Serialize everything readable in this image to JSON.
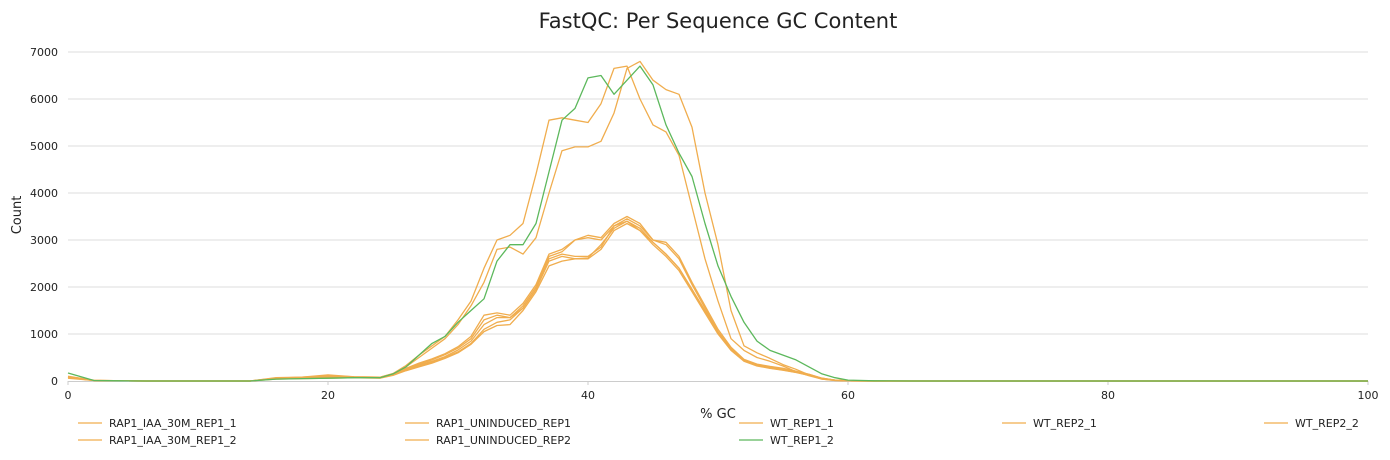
{
  "chart_data": {
    "type": "line",
    "title": "FastQC: Per Sequence GC Content",
    "xlabel": "% GC",
    "ylabel": "Count",
    "xlim": [
      0,
      100
    ],
    "ylim": [
      0,
      7000
    ],
    "xticks": [
      0,
      20,
      40,
      60,
      80,
      100
    ],
    "yticks": [
      0,
      1000,
      2000,
      3000,
      4000,
      5000,
      6000,
      7000
    ],
    "grid": true,
    "legend_position": "bottom",
    "series": [
      {
        "name": "RAP1_IAA_30M_REP1_1",
        "color": "#f0ad4e",
        "x": [
          0,
          2,
          4,
          6,
          8,
          10,
          12,
          14,
          16,
          18,
          20,
          22,
          24,
          25,
          26,
          27,
          28,
          29,
          30,
          31,
          32,
          33,
          34,
          35,
          36,
          37,
          38,
          39,
          40,
          41,
          42,
          43,
          44,
          45,
          46,
          47,
          48,
          49,
          50,
          51,
          52,
          53,
          54,
          55,
          56,
          57,
          58,
          59,
          60,
          62,
          65,
          70,
          100
        ],
        "y": [
          80,
          10,
          5,
          0,
          0,
          0,
          0,
          0,
          40,
          50,
          60,
          70,
          60,
          120,
          220,
          300,
          380,
          480,
          600,
          780,
          1050,
          1180,
          1200,
          1500,
          1900,
          2450,
          2550,
          2600,
          2600,
          2800,
          3200,
          3350,
          3200,
          2900,
          2650,
          2350,
          1900,
          1450,
          1000,
          650,
          420,
          320,
          270,
          230,
          180,
          120,
          50,
          20,
          5,
          0,
          0,
          0,
          0
        ]
      },
      {
        "name": "RAP1_IAA_30M_REP1_2",
        "color": "#f0ad4e",
        "x": [
          0,
          2,
          4,
          6,
          8,
          10,
          12,
          14,
          16,
          18,
          20,
          22,
          24,
          25,
          26,
          27,
          28,
          29,
          30,
          31,
          32,
          33,
          34,
          35,
          36,
          37,
          38,
          39,
          40,
          41,
          42,
          43,
          44,
          45,
          46,
          47,
          48,
          49,
          50,
          51,
          52,
          53,
          54,
          55,
          56,
          57,
          58,
          59,
          60,
          62,
          65,
          70,
          100
        ],
        "y": [
          60,
          10,
          5,
          0,
          0,
          0,
          0,
          0,
          50,
          60,
          70,
          80,
          70,
          130,
          230,
          320,
          400,
          500,
          620,
          800,
          1100,
          1250,
          1300,
          1550,
          1950,
          2550,
          2650,
          2600,
          2620,
          2900,
          3250,
          3400,
          3250,
          2950,
          2700,
          2400,
          1950,
          1500,
          1050,
          680,
          440,
          340,
          280,
          240,
          190,
          130,
          55,
          20,
          5,
          0,
          0,
          0,
          0
        ]
      },
      {
        "name": "RAP1_UNINDUCED_REP1",
        "color": "#f0ad4e",
        "x": [
          0,
          2,
          4,
          6,
          8,
          10,
          12,
          14,
          16,
          18,
          20,
          22,
          24,
          25,
          26,
          27,
          28,
          29,
          30,
          31,
          32,
          33,
          34,
          35,
          36,
          37,
          38,
          39,
          40,
          41,
          42,
          43,
          44,
          45,
          46,
          47,
          48,
          49,
          50,
          51,
          52,
          53,
          54,
          55,
          56,
          57,
          58,
          59,
          60,
          62,
          65,
          70,
          100
        ],
        "y": [
          100,
          15,
          5,
          0,
          0,
          0,
          0,
          0,
          70,
          80,
          110,
          90,
          80,
          150,
          300,
          500,
          700,
          900,
          1200,
          1600,
          2100,
          2800,
          2850,
          2700,
          3050,
          4000,
          4900,
          4980,
          4980,
          5100,
          5700,
          6650,
          6800,
          6400,
          6200,
          6100,
          5400,
          4000,
          2900,
          1500,
          750,
          600,
          480,
          350,
          250,
          130,
          40,
          10,
          5,
          0,
          0,
          0,
          0
        ]
      },
      {
        "name": "RAP1_UNINDUCED_REP2",
        "color": "#f0ad4e",
        "x": [
          0,
          2,
          4,
          6,
          8,
          10,
          12,
          14,
          16,
          18,
          20,
          22,
          24,
          25,
          26,
          27,
          28,
          29,
          30,
          31,
          32,
          33,
          34,
          35,
          36,
          37,
          38,
          39,
          40,
          41,
          42,
          43,
          44,
          45,
          46,
          47,
          48,
          49,
          50,
          51,
          52,
          53,
          54,
          55,
          56,
          57,
          58,
          59,
          60,
          62,
          65,
          70,
          100
        ],
        "y": [
          90,
          15,
          5,
          0,
          0,
          0,
          0,
          0,
          60,
          80,
          130,
          90,
          80,
          160,
          330,
          550,
          750,
          950,
          1300,
          1700,
          2400,
          3000,
          3100,
          3350,
          4400,
          5550,
          5600,
          5550,
          5500,
          5900,
          6650,
          6700,
          6000,
          5450,
          5300,
          4800,
          3700,
          2600,
          1700,
          900,
          650,
          500,
          420,
          320,
          200,
          110,
          40,
          10,
          5,
          0,
          0,
          0,
          0
        ]
      },
      {
        "name": "WT_REP1_1",
        "color": "#f0ad4e",
        "x": [
          0,
          2,
          4,
          6,
          8,
          10,
          12,
          14,
          16,
          18,
          20,
          22,
          24,
          25,
          26,
          27,
          28,
          29,
          30,
          31,
          32,
          33,
          34,
          35,
          36,
          37,
          38,
          39,
          40,
          41,
          42,
          43,
          44,
          45,
          46,
          47,
          48,
          49,
          50,
          51,
          52,
          53,
          54,
          55,
          56,
          57,
          58,
          59,
          60,
          62,
          65,
          70,
          100
        ],
        "y": [
          70,
          10,
          5,
          0,
          0,
          0,
          0,
          0,
          50,
          60,
          80,
          80,
          70,
          140,
          260,
          360,
          450,
          560,
          700,
          900,
          1300,
          1400,
          1350,
          1600,
          2000,
          2650,
          2750,
          3000,
          3050,
          3000,
          3300,
          3450,
          3300,
          3000,
          2900,
          2600,
          2050,
          1550,
          1050,
          700,
          450,
          350,
          300,
          260,
          200,
          140,
          60,
          20,
          5,
          0,
          0,
          0,
          0
        ]
      },
      {
        "name": "WT_REP1_2",
        "color": "#5cb85c",
        "x": [
          0,
          2,
          4,
          6,
          8,
          10,
          12,
          14,
          16,
          18,
          20,
          22,
          24,
          25,
          26,
          27,
          28,
          29,
          30,
          31,
          32,
          33,
          34,
          35,
          36,
          37,
          38,
          39,
          40,
          41,
          42,
          43,
          44,
          45,
          46,
          47,
          48,
          49,
          50,
          51,
          52,
          53,
          54,
          55,
          56,
          57,
          58,
          59,
          60,
          62,
          65,
          70,
          100
        ],
        "y": [
          170,
          10,
          5,
          0,
          0,
          0,
          0,
          0,
          40,
          50,
          60,
          70,
          70,
          150,
          300,
          550,
          800,
          950,
          1250,
          1500,
          1750,
          2550,
          2900,
          2900,
          3350,
          4450,
          5550,
          5800,
          6450,
          6500,
          6100,
          6400,
          6700,
          6300,
          5450,
          4850,
          4350,
          3350,
          2450,
          1800,
          1250,
          850,
          650,
          550,
          450,
          300,
          150,
          70,
          20,
          5,
          0,
          0,
          0
        ]
      },
      {
        "name": "WT_REP2_1",
        "color": "#f0ad4e",
        "x": [
          0,
          2,
          4,
          6,
          8,
          10,
          12,
          14,
          16,
          18,
          20,
          22,
          24,
          25,
          26,
          27,
          28,
          29,
          30,
          31,
          32,
          33,
          34,
          35,
          36,
          37,
          38,
          39,
          40,
          41,
          42,
          43,
          44,
          45,
          46,
          47,
          48,
          49,
          50,
          51,
          52,
          53,
          54,
          55,
          56,
          57,
          58,
          59,
          60,
          62,
          65,
          70,
          100
        ],
        "y": [
          80,
          10,
          5,
          0,
          0,
          0,
          0,
          0,
          60,
          70,
          90,
          85,
          75,
          145,
          270,
          380,
          470,
          580,
          730,
          950,
          1400,
          1450,
          1400,
          1650,
          2050,
          2700,
          2800,
          3000,
          3100,
          3050,
          3350,
          3500,
          3350,
          3000,
          2950,
          2650,
          2100,
          1600,
          1100,
          720,
          460,
          360,
          310,
          270,
          210,
          145,
          60,
          20,
          5,
          0,
          0,
          0,
          0
        ]
      },
      {
        "name": "WT_REP2_2",
        "color": "#f0ad4e",
        "x": [
          0,
          2,
          4,
          6,
          8,
          10,
          12,
          14,
          16,
          18,
          20,
          22,
          24,
          25,
          26,
          27,
          28,
          29,
          30,
          31,
          32,
          33,
          34,
          35,
          36,
          37,
          38,
          39,
          40,
          41,
          42,
          43,
          44,
          45,
          46,
          47,
          48,
          49,
          50,
          51,
          52,
          53,
          54,
          55,
          56,
          57,
          58,
          59,
          60,
          62,
          65,
          70,
          100
        ],
        "y": [
          75,
          10,
          5,
          0,
          0,
          0,
          0,
          0,
          55,
          65,
          75,
          75,
          65,
          135,
          250,
          340,
          420,
          520,
          660,
          850,
          1200,
          1350,
          1350,
          1550,
          1950,
          2600,
          2700,
          2650,
          2650,
          2850,
          3300,
          3400,
          3200,
          2950,
          2700,
          2400,
          1950,
          1480,
          1020,
          660,
          430,
          330,
          275,
          235,
          185,
          125,
          50,
          20,
          5,
          0,
          0,
          0,
          0
        ]
      }
    ]
  }
}
